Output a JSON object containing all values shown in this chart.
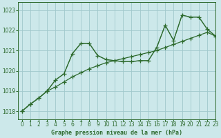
{
  "title": "Graphe pression niveau de la mer (hPa)",
  "background_color": "#cce8ea",
  "grid_color": "#a0c8cc",
  "line_color": "#2d6a2d",
  "xlim": [
    -0.5,
    23
  ],
  "ylim": [
    1017.6,
    1023.4
  ],
  "yticks": [
    1018,
    1019,
    1020,
    1021,
    1022,
    1023
  ],
  "xticks": [
    0,
    1,
    2,
    3,
    4,
    5,
    6,
    7,
    8,
    9,
    10,
    11,
    12,
    13,
    14,
    15,
    16,
    17,
    18,
    19,
    20,
    21,
    22,
    23
  ],
  "series1": [
    1018.0,
    1018.35,
    1018.65,
    1019.0,
    1019.55,
    1019.85,
    1020.85,
    1021.35,
    1021.35,
    1020.75,
    1020.55,
    1020.5,
    1020.45,
    1020.45,
    1020.5,
    1020.5,
    1021.15,
    1022.25,
    1021.5,
    1022.75,
    1022.65,
    1022.65,
    1022.05,
    1021.7
  ],
  "series2": [
    1018.0,
    1018.35,
    1018.65,
    1019.0,
    1019.2,
    1019.45,
    1019.7,
    1019.9,
    1020.1,
    1020.25,
    1020.4,
    1020.5,
    1020.6,
    1020.7,
    1020.8,
    1020.9,
    1021.0,
    1021.15,
    1021.3,
    1021.45,
    1021.6,
    1021.75,
    1021.9,
    1021.7
  ],
  "series3": [
    1018.0,
    1018.35,
    1018.65,
    1019.0,
    1019.55,
    1019.85,
    1020.85,
    1021.35,
    1021.35,
    1020.75,
    1020.55,
    1020.5,
    1020.45,
    1020.45,
    1020.5,
    1020.5,
    1021.15,
    1022.25,
    1021.5,
    1022.75,
    1022.65,
    1022.65,
    1022.05,
    1021.7
  ],
  "marker": "+",
  "marker_size": 4,
  "linewidth": 0.9,
  "xlabel_fontsize": 6,
  "tick_fontsize": 5.5,
  "ylabel_fontsize": 5.5
}
